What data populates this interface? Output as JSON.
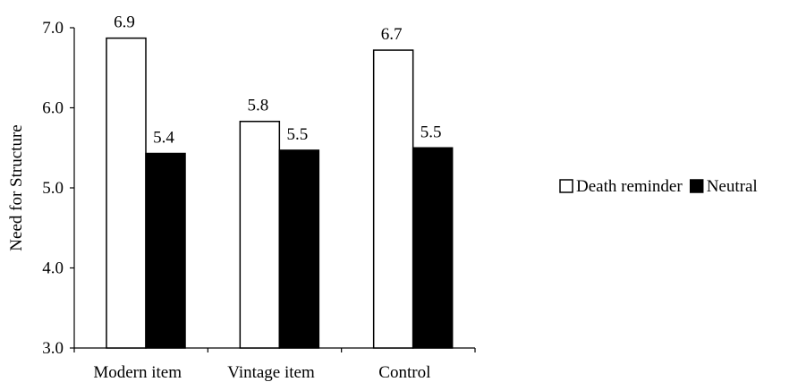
{
  "chart_data": {
    "type": "bar",
    "title": "",
    "xlabel": "",
    "ylabel": "Need for Structure",
    "ylim": [
      3.0,
      7.0
    ],
    "yticks": [
      "3.0",
      "4.0",
      "5.0",
      "6.0",
      "7.0"
    ],
    "ytick_values": [
      3.0,
      4.0,
      5.0,
      6.0,
      7.0
    ],
    "categories": [
      "Modern item",
      "Vintage item",
      "Control"
    ],
    "series": [
      {
        "name": "Death reminder",
        "values": [
          6.87,
          5.83,
          6.72
        ],
        "labels": [
          "6.9",
          "5.8",
          "6.7"
        ],
        "color": "#ffffff"
      },
      {
        "name": "Neutral",
        "values": [
          5.43,
          5.47,
          5.5
        ],
        "labels": [
          "5.4",
          "5.5",
          "5.5"
        ],
        "color": "#000000"
      }
    ],
    "grid": false,
    "legend_position": "right"
  }
}
